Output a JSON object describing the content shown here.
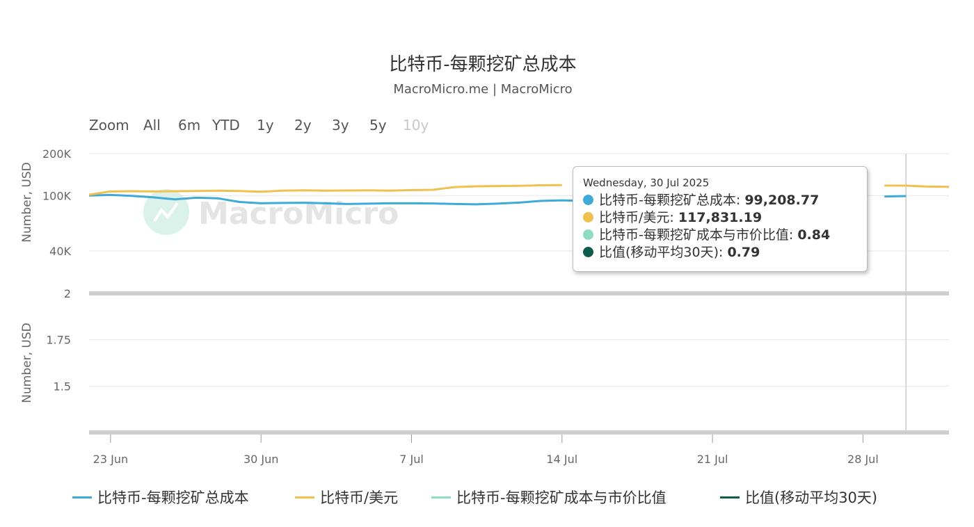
{
  "title": "比特币-每颗挖矿总成本",
  "subtitle": "MacroMicro.me | MacroMicro",
  "watermark": "MacroMicro",
  "range_selector": {
    "zoom_label": "Zoom",
    "buttons": [
      "All",
      "6m",
      "YTD",
      "1y",
      "2y",
      "3y",
      "5y",
      "10y"
    ],
    "disabled": [
      "10y"
    ]
  },
  "tooltip": {
    "date": "Wednesday, 30 Jul 2025",
    "rows": [
      {
        "label": "比特币-每颗挖矿总成本",
        "value": "99,208.77",
        "color": "#3fa9d8"
      },
      {
        "label": "比特币/美元",
        "value": "117,831.19",
        "color": "#f0c050"
      },
      {
        "label": "比特币-每颗挖矿成本与市价比值",
        "value": "0.84",
        "color": "#8fdcc2"
      },
      {
        "label": "比值(移动平均30天)",
        "value": "0.79",
        "color": "#0d5c4c"
      }
    ]
  },
  "legend": [
    {
      "label": "比特币-每颗挖矿总成本",
      "color": "#3fa9d8"
    },
    {
      "label": "比特币/美元",
      "color": "#f0c050"
    },
    {
      "label": "比特币-每颗挖矿成本与市价比值",
      "color": "#8fdcc2"
    },
    {
      "label": "比值(移动平均30天)",
      "color": "#0d5c4c"
    }
  ],
  "chart_data": {
    "type": "line",
    "title": "比特币-每颗挖矿总成本",
    "subtitle": "MacroMicro.me | MacroMicro",
    "x": [
      "2025-06-22",
      "2025-06-23",
      "2025-06-24",
      "2025-06-25",
      "2025-06-26",
      "2025-06-27",
      "2025-06-28",
      "2025-06-29",
      "2025-06-30",
      "2025-07-01",
      "2025-07-02",
      "2025-07-03",
      "2025-07-04",
      "2025-07-05",
      "2025-07-06",
      "2025-07-07",
      "2025-07-08",
      "2025-07-09",
      "2025-07-10",
      "2025-07-11",
      "2025-07-12",
      "2025-07-13",
      "2025-07-14",
      "2025-07-15",
      "2025-07-16",
      "2025-07-17",
      "2025-07-18",
      "2025-07-19",
      "2025-07-20",
      "2025-07-21",
      "2025-07-22",
      "2025-07-23",
      "2025-07-24",
      "2025-07-25",
      "2025-07-26",
      "2025-07-27",
      "2025-07-28",
      "2025-07-29",
      "2025-07-30",
      "2025-07-31",
      "2025-08-01"
    ],
    "x_ticks": [
      "23 Jun",
      "30 Jun",
      "7 Jul",
      "14 Jul",
      "21 Jul",
      "28 Jul"
    ],
    "panels": [
      {
        "ylabel": "Number, USD",
        "scale": "log",
        "ylim": [
          40000,
          200000
        ],
        "yticks": [
          "200K",
          "100K",
          "40K"
        ],
        "series": [
          {
            "name": "比特币-每颗挖矿总成本",
            "color": "#3fa9d8",
            "values": [
              100000,
              101000,
              99500,
              97000,
              94000,
              96500,
              95500,
              90000,
              88000,
              88500,
              88800,
              88000,
              87000,
              87500,
              88000,
              88000,
              87800,
              87000,
              86500,
              87500,
              89000,
              91500,
              92500,
              91500,
              null,
              null,
              null,
              null,
              null,
              null,
              null,
              null,
              null,
              null,
              null,
              null,
              null,
              98500,
              99208.77,
              null,
              null
            ]
          },
          {
            "name": "比特币/美元",
            "color": "#f0c050",
            "values": [
              101500,
              107000,
              107500,
              107000,
              107500,
              107800,
              108500,
              107800,
              106500,
              108500,
              109000,
              108500,
              108800,
              109000,
              108500,
              109500,
              110000,
              115000,
              116500,
              117000,
              117500,
              118500,
              119000,
              null,
              null,
              null,
              null,
              null,
              null,
              null,
              null,
              null,
              null,
              null,
              null,
              null,
              null,
              118000,
              117831.19,
              116000,
              115500
            ]
          }
        ]
      },
      {
        "ylabel": "Number, USD",
        "scale": "linear",
        "ylim": [
          1.25,
          2
        ],
        "yticks": [
          "2",
          "1.75",
          "1.5"
        ],
        "series": [
          {
            "name": "比特币-每颗挖矿成本与市价比值",
            "color": "#8fdcc2",
            "values": []
          },
          {
            "name": "比值(移动平均30天)",
            "color": "#0d5c4c",
            "values": []
          }
        ]
      }
    ],
    "crosshair_x": "2025-07-30",
    "grid": true,
    "legend_position": "bottom"
  }
}
